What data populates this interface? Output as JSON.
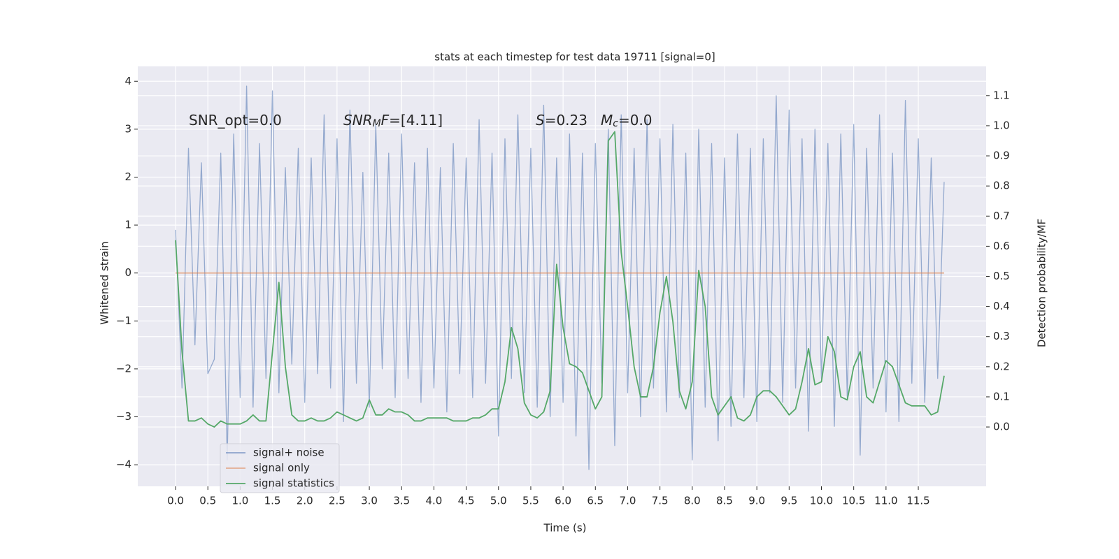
{
  "chart_data": {
    "type": "line",
    "title": "stats at each timestep for test data 19711 [signal=0]",
    "xlabel": "Time (s)",
    "ylabel": "Whitened strain",
    "y2label": "Detection probability/MF",
    "background": "#eaeaf2",
    "grid": true,
    "legend": "lower left",
    "xlim": [
      -0.585,
      12.55
    ],
    "ylim": [
      -4.45,
      4.31
    ],
    "y2lim": [
      -0.197,
      1.197
    ],
    "xticks": [
      {
        "value": 0,
        "label": "0.0"
      },
      0.5,
      {
        "value": 1,
        "label": "1.0"
      },
      1.5,
      {
        "value": 2,
        "label": "2.0"
      },
      2.5,
      {
        "value": 3,
        "label": "3.0"
      },
      3.5,
      {
        "value": 4,
        "label": "4.0"
      },
      4.5,
      {
        "value": 5,
        "label": "5.0"
      },
      5.5,
      {
        "value": 6,
        "label": "6.0"
      },
      6.5,
      {
        "value": 7,
        "label": "7.0"
      },
      7.5,
      {
        "value": 8,
        "label": "8.0"
      },
      8.5,
      {
        "value": 9,
        "label": "9.0"
      },
      9.5,
      {
        "value": 10,
        "label": "10.0"
      },
      10.5,
      {
        "value": 11,
        "label": "11.0"
      },
      11.5
    ],
    "yticks": [
      {
        "value": -4,
        "label": "−4"
      },
      {
        "value": -3,
        "label": "−3"
      },
      {
        "value": -2,
        "label": "−2"
      },
      {
        "value": -1,
        "label": "−1"
      },
      0,
      1,
      2,
      3,
      4
    ],
    "y2ticks": [
      {
        "value": 0,
        "label": "0.0"
      },
      0.1,
      0.2,
      0.3,
      0.4,
      0.5,
      0.6,
      0.7,
      0.8,
      0.9,
      {
        "value": 1,
        "label": "1.0"
      },
      1.1
    ],
    "annotations": [
      [
        {
          "text": "SNR_opt=0.0"
        }
      ],
      [
        {
          "text": "SNR",
          "italic": true
        },
        {
          "text": "M",
          "italic": true,
          "sub": true
        },
        {
          "text": "F",
          "italic": true
        },
        {
          "text": "=[4.11]"
        }
      ],
      [
        {
          "text": "S",
          "italic": true
        },
        {
          "text": "=0.23"
        }
      ],
      [
        {
          "text": "M",
          "italic": true
        },
        {
          "text": "c",
          "italic": true,
          "sub": true
        },
        {
          "text": "=0.0"
        }
      ]
    ],
    "x": [
      0,
      0.1,
      0.2,
      0.3,
      0.4,
      0.5,
      0.6,
      0.7,
      0.8,
      0.9,
      1,
      1.1,
      1.2,
      1.3,
      1.4,
      1.5,
      1.6,
      1.7,
      1.8,
      1.9,
      2,
      2.1,
      2.2,
      2.3,
      2.4,
      2.5,
      2.6,
      2.7,
      2.8,
      2.9,
      3,
      3.1,
      3.2,
      3.3,
      3.4,
      3.5,
      3.6,
      3.7,
      3.8,
      3.9,
      4,
      4.1,
      4.2,
      4.3,
      4.4,
      4.5,
      4.6,
      4.7,
      4.8,
      4.9,
      5,
      5.1,
      5.2,
      5.3,
      5.4,
      5.5,
      5.6,
      5.7,
      5.8,
      5.9,
      6,
      6.1,
      6.2,
      6.3,
      6.4,
      6.5,
      6.6,
      6.7,
      6.8,
      6.9,
      7,
      7.1,
      7.2,
      7.3,
      7.4,
      7.5,
      7.6,
      7.7,
      7.8,
      7.9,
      8,
      8.1,
      8.2,
      8.3,
      8.4,
      8.5,
      8.6,
      8.7,
      8.8,
      8.9,
      9,
      9.1,
      9.2,
      9.3,
      9.4,
      9.5,
      9.6,
      9.7,
      9.8,
      9.9,
      10,
      10.1,
      10.2,
      10.3,
      10.4,
      10.5,
      10.6,
      10.7,
      10.8,
      10.9,
      11,
      11.1,
      11.2,
      11.3,
      11.4,
      11.5,
      11.6,
      11.7,
      11.8,
      11.9
    ],
    "series": [
      {
        "name": "signal+ noise",
        "color": "#4c72b0",
        "values": [
          0.9,
          -2.4,
          2.6,
          -1.5,
          2.3,
          -2.1,
          -1.8,
          2.5,
          -3.9,
          2.9,
          -2.6,
          3.9,
          -2.8,
          2.7,
          -2.2,
          3.8,
          -2.5,
          2.2,
          -1.9,
          2.6,
          -2.7,
          2.4,
          -2.1,
          3.3,
          -2.4,
          2.8,
          -3.1,
          3.4,
          -2.3,
          2.1,
          -2.8,
          3.1,
          -2.0,
          2.5,
          -2.6,
          2.9,
          -2.2,
          2.3,
          -2.7,
          2.6,
          -2.4,
          2.2,
          -2.9,
          2.7,
          -2.1,
          2.4,
          -2.6,
          3.2,
          -2.3,
          2.5,
          -3.4,
          2.8,
          -2.2,
          3.3,
          -2.5,
          2.6,
          -2.8,
          3.5,
          -3.0,
          2.4,
          -2.7,
          2.9,
          -3.4,
          2.5,
          -4.1,
          2.7,
          -2.3,
          3.0,
          -3.6,
          3.3,
          -2.5,
          2.6,
          -3.0,
          3.2,
          -2.4,
          2.8,
          -2.9,
          3.1,
          -2.6,
          2.5,
          -3.9,
          3.0,
          -2.8,
          2.7,
          -3.5,
          2.4,
          -3.2,
          2.9,
          -2.6,
          2.6,
          -3.1,
          2.8,
          -2.5,
          3.7,
          -2.7,
          3.4,
          -2.4,
          2.8,
          -3.3,
          3.0,
          -2.2,
          2.7,
          -3.2,
          2.9,
          -2.6,
          3.1,
          -3.8,
          2.6,
          -2.4,
          3.3,
          -2.9,
          2.5,
          -3.1,
          3.6,
          -2.3,
          2.8,
          -2.7,
          2.4,
          -2.2,
          1.9
        ]
      },
      {
        "name": "signal only",
        "color": "#dd8452",
        "values": [
          0,
          0,
          0,
          0,
          0,
          0,
          0,
          0,
          0,
          0,
          0,
          0,
          0,
          0,
          0,
          0,
          0,
          0,
          0,
          0,
          0,
          0,
          0,
          0,
          0,
          0,
          0,
          0,
          0,
          0,
          0,
          0,
          0,
          0,
          0,
          0,
          0,
          0,
          0,
          0,
          0,
          0,
          0,
          0,
          0,
          0,
          0,
          0,
          0,
          0,
          0,
          0,
          0,
          0,
          0,
          0,
          0,
          0,
          0,
          0,
          0,
          0,
          0,
          0,
          0,
          0,
          0,
          0,
          0,
          0,
          0,
          0,
          0,
          0,
          0,
          0,
          0,
          0,
          0,
          0,
          0,
          0,
          0,
          0,
          0,
          0,
          0,
          0,
          0,
          0,
          0,
          0,
          0,
          0,
          0,
          0,
          0,
          0,
          0,
          0,
          0,
          0,
          0,
          0,
          0,
          0,
          0,
          0,
          0,
          0,
          0,
          0,
          0,
          0,
          0,
          0,
          0,
          0,
          0,
          0
        ]
      },
      {
        "name": "signal statistics",
        "color": "#55a868",
        "axis": "y2",
        "values": [
          0.62,
          0.25,
          0.02,
          0.02,
          0.03,
          0.01,
          0.0,
          0.02,
          0.01,
          0.01,
          0.01,
          0.02,
          0.04,
          0.02,
          0.02,
          0.25,
          0.48,
          0.2,
          0.04,
          0.02,
          0.02,
          0.03,
          0.02,
          0.02,
          0.03,
          0.05,
          0.04,
          0.03,
          0.02,
          0.03,
          0.09,
          0.04,
          0.04,
          0.06,
          0.05,
          0.05,
          0.04,
          0.02,
          0.02,
          0.03,
          0.03,
          0.03,
          0.03,
          0.02,
          0.02,
          0.02,
          0.03,
          0.03,
          0.04,
          0.06,
          0.06,
          0.15,
          0.33,
          0.26,
          0.08,
          0.04,
          0.03,
          0.05,
          0.12,
          0.54,
          0.33,
          0.21,
          0.2,
          0.18,
          0.12,
          0.06,
          0.1,
          0.95,
          0.98,
          0.58,
          0.4,
          0.2,
          0.1,
          0.1,
          0.2,
          0.38,
          0.5,
          0.35,
          0.12,
          0.06,
          0.15,
          0.52,
          0.4,
          0.1,
          0.04,
          0.07,
          0.1,
          0.03,
          0.02,
          0.04,
          0.1,
          0.12,
          0.12,
          0.1,
          0.07,
          0.04,
          0.06,
          0.15,
          0.26,
          0.14,
          0.15,
          0.3,
          0.25,
          0.1,
          0.09,
          0.2,
          0.25,
          0.1,
          0.08,
          0.15,
          0.22,
          0.2,
          0.14,
          0.08,
          0.07,
          0.07,
          0.07,
          0.04,
          0.05,
          0.17
        ]
      }
    ]
  }
}
